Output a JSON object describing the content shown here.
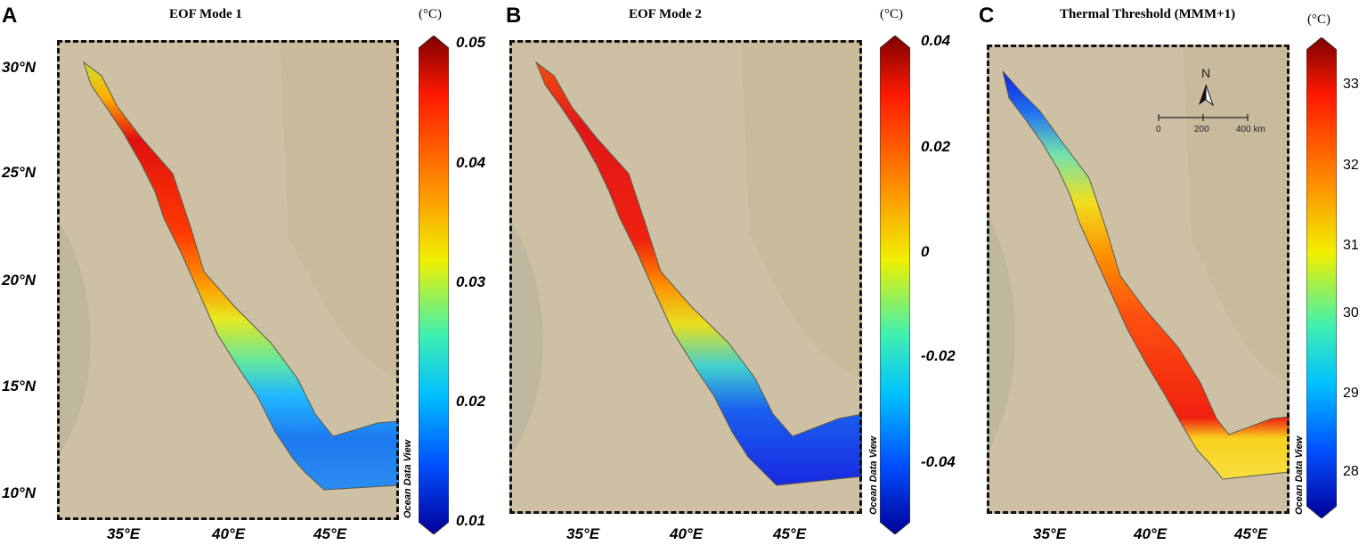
{
  "panels": [
    {
      "letter": "A",
      "title": "EOF Mode 1",
      "unit": "(°C)",
      "ticks": [
        "0.05",
        "0.04",
        "0.03",
        "0.02",
        "0.01"
      ],
      "lat_labels": [
        "30°N",
        "25°N",
        "20°N",
        "15°N",
        "10°N"
      ],
      "lon_labels": [
        "35°E",
        "40°E",
        "45°E"
      ],
      "credit": "Ocean Data View"
    },
    {
      "letter": "B",
      "title": "EOF Mode 2",
      "unit": "(°C)",
      "ticks": [
        "0.04",
        "0.02",
        "0",
        "-0.02",
        "-0.04"
      ],
      "lon_labels": [
        "35°E",
        "40°E",
        "45°E"
      ],
      "credit": "Ocean Data View"
    },
    {
      "letter": "C",
      "title": "Thermal Threshold (MMM+1)",
      "unit": "(°C)",
      "ticks": [
        "33",
        "32",
        "31",
        "30",
        "29",
        "28"
      ],
      "lon_labels": [
        "35°E",
        "40°E",
        "45°E"
      ],
      "credit": "Ocean Data View",
      "north_label": "N",
      "scale_labels": [
        "0",
        "200",
        "400 km"
      ]
    }
  ],
  "colors": {
    "land": "#cbbfa6",
    "jet": [
      "#7f0000",
      "#d70000",
      "#ff2a00",
      "#ff8c00",
      "#ffd400",
      "#c8f032",
      "#5cf09a",
      "#00d0ff",
      "#0078ff",
      "#0018e0",
      "#00009a"
    ]
  }
}
